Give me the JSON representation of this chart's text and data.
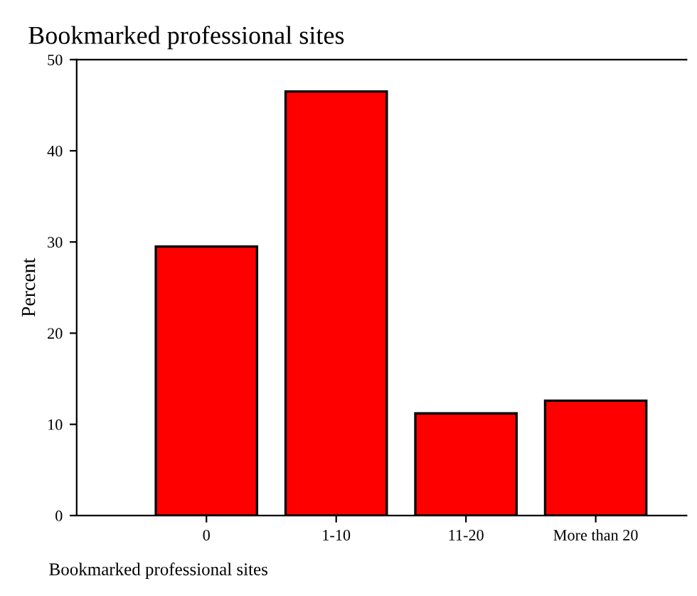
{
  "chart_data": {
    "type": "bar",
    "title": "Bookmarked professional sites",
    "xlabel": "Bookmarked professional sites",
    "ylabel": "Percent",
    "categories": [
      "0",
      "1-10",
      "11-20",
      "More than 20"
    ],
    "values": [
      29.5,
      46.5,
      11.2,
      12.6
    ],
    "color": "#ff0000",
    "ylim": [
      0,
      50
    ],
    "yticks": [
      0,
      10,
      20,
      30,
      40,
      50
    ],
    "grid": false,
    "legend": false
  }
}
